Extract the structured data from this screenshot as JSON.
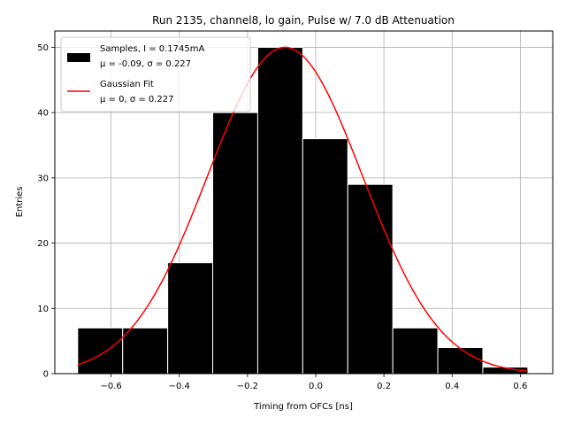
{
  "chart_data": {
    "type": "bar",
    "title": "Run 2135, channel8, lo gain, Pulse w/ 7.0 dB Attenuation",
    "xlabel": "Timing from OFCs [ns]",
    "ylabel": "Entries",
    "xlim": [
      -0.765,
      0.695
    ],
    "ylim": [
      0,
      52.5
    ],
    "xticks": [
      -0.6,
      -0.4,
      -0.2,
      0.0,
      0.2,
      0.4,
      0.6
    ],
    "xtick_labels": [
      "−0.6",
      "−0.4",
      "−0.2",
      "0.0",
      "0.2",
      "0.4",
      "0.6"
    ],
    "yticks": [
      0,
      10,
      20,
      30,
      40,
      50
    ],
    "ytick_labels": [
      "0",
      "10",
      "20",
      "30",
      "40",
      "50"
    ],
    "grid": true,
    "legend_position": "top-left",
    "bin_edges": [
      -0.698,
      -0.566,
      -0.434,
      -0.302,
      -0.17,
      -0.038,
      0.094,
      0.226,
      0.358,
      0.49,
      0.622
    ],
    "counts": [
      7,
      7,
      17,
      40,
      50,
      36,
      29,
      7,
      4,
      1
    ],
    "series": [
      {
        "name": "Samples, I = 0.1745mA",
        "name_line2": "μ = -0.09, σ = 0.227",
        "kind": "histogram",
        "color": "#000000"
      },
      {
        "name": "Gaussian Fit",
        "name_line2": "μ = 0, σ = 0.227",
        "kind": "line",
        "color": "#ff0000",
        "amplitude": 50.0,
        "mean": -0.09,
        "sigma": 0.227,
        "x_range": [
          -0.698,
          0.622
        ]
      }
    ]
  }
}
